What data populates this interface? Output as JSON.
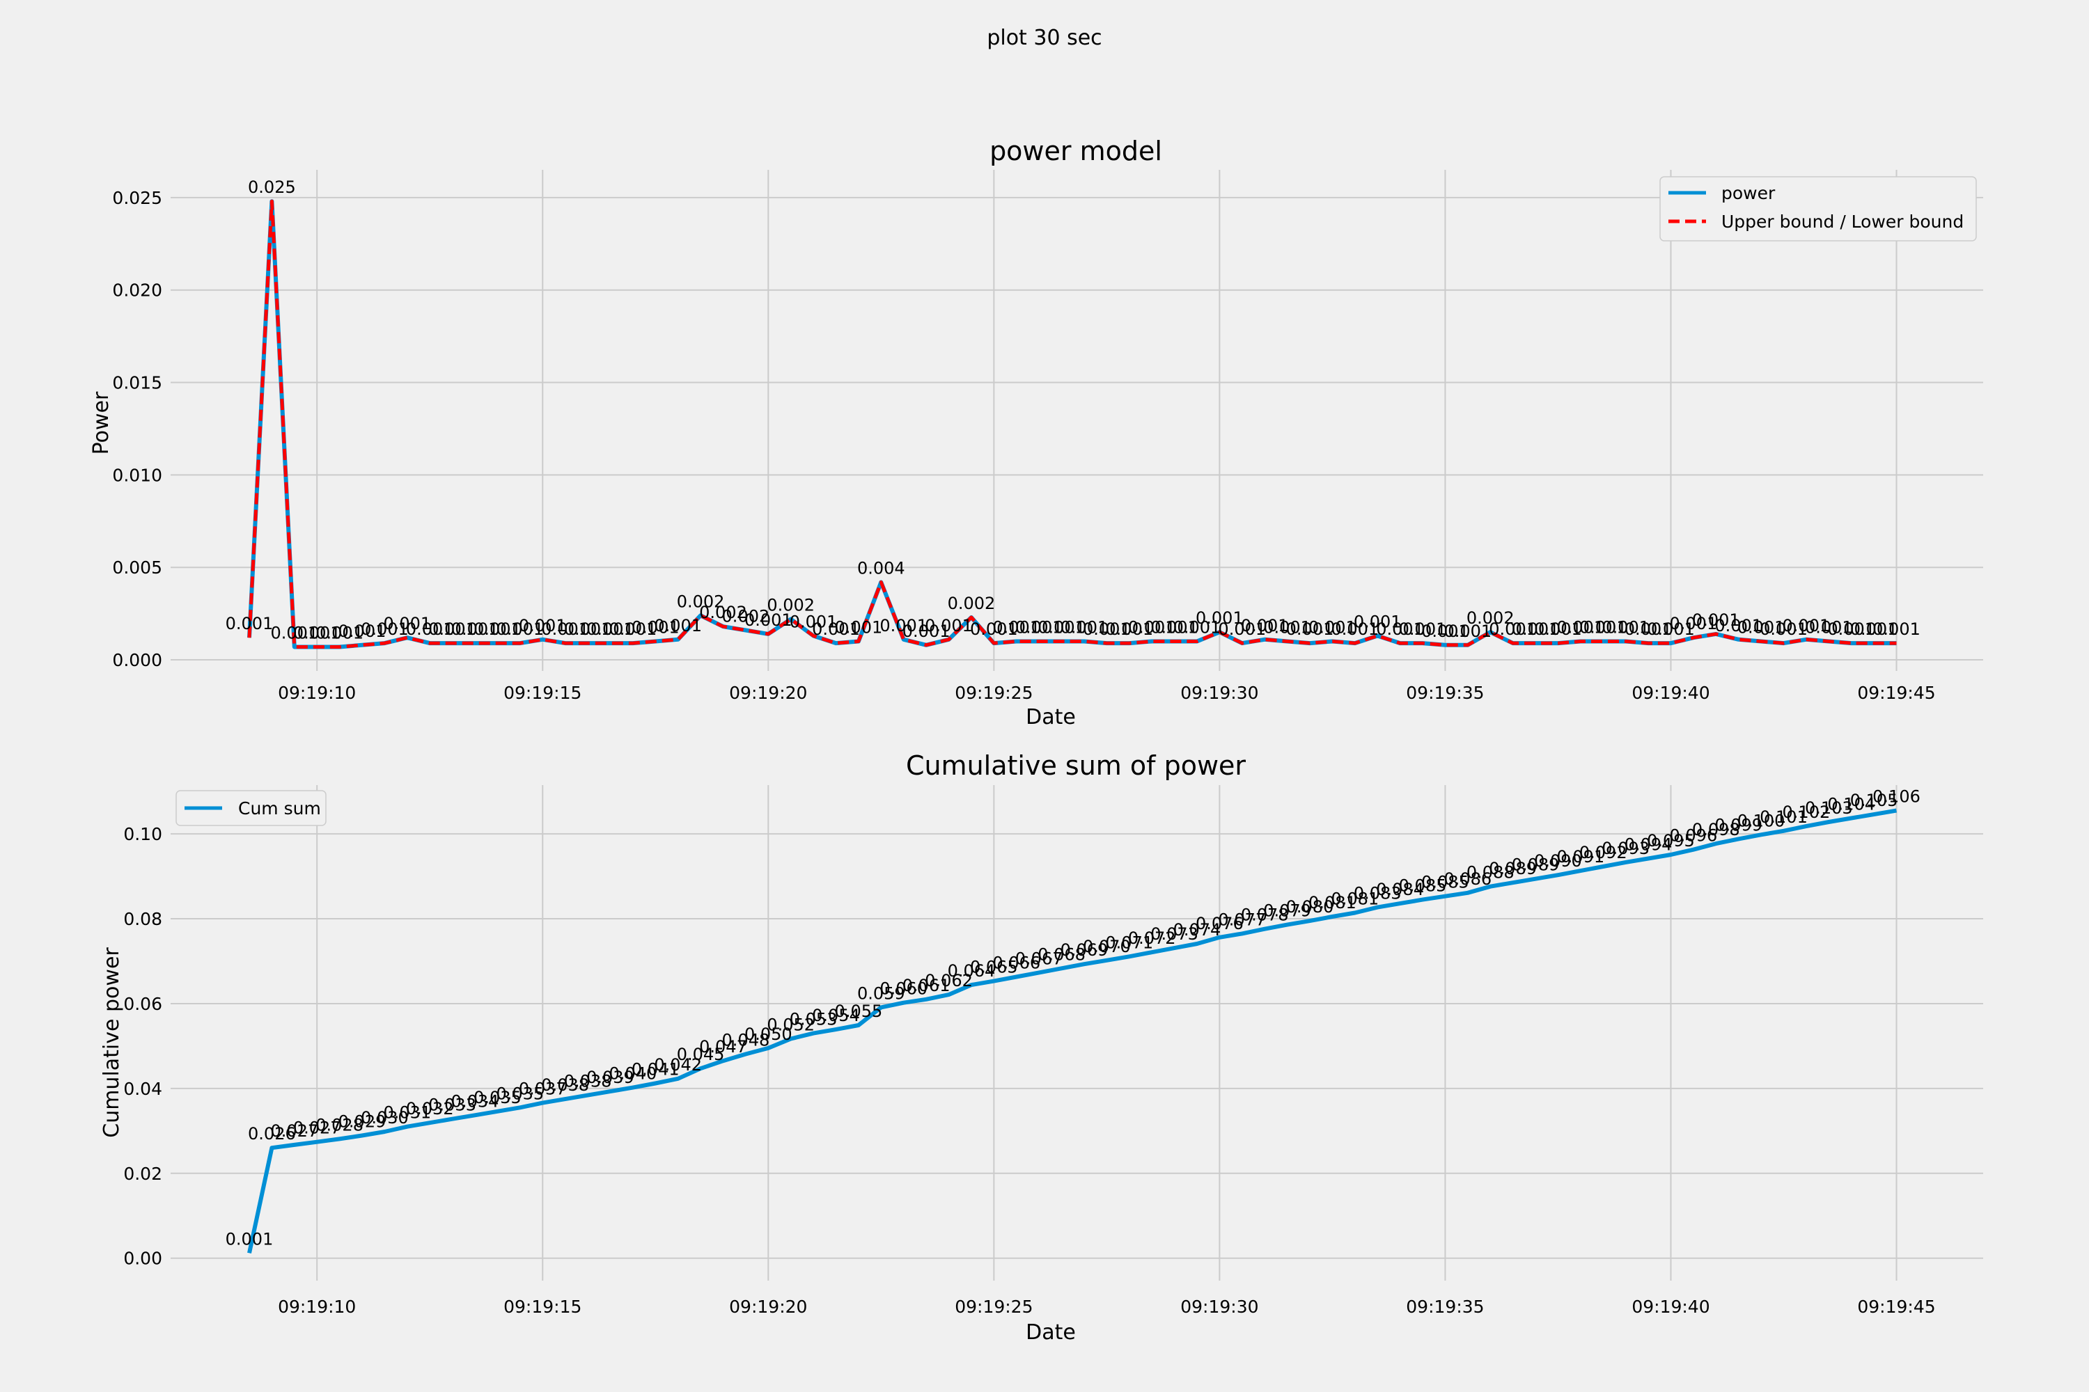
{
  "figure": {
    "suptitle": "plot 30 sec"
  },
  "colors": {
    "background": "#f0f0f0",
    "power": "#008fd5",
    "bound": "#ff0000",
    "grid": "#cbcbcb"
  },
  "chart_data": [
    {
      "type": "line",
      "title": "power model",
      "xlabel": "Date",
      "ylabel": "Power",
      "x_time_range": [
        "09:19:08.5",
        "09:19:45.1"
      ],
      "x_ticks": [
        "09:19:10",
        "09:19:15",
        "09:19:20",
        "09:19:25",
        "09:19:30",
        "09:19:35",
        "09:19:40",
        "09:19:45"
      ],
      "ylim": [
        -0.0006,
        0.0265
      ],
      "y_ticks": [
        "0.000",
        "0.005",
        "0.010",
        "0.015",
        "0.020",
        "0.025"
      ],
      "grid": true,
      "legend": "top-right",
      "series": [
        {
          "name": "power",
          "style": "solid"
        },
        {
          "name": "Upper bound / Lower bound",
          "style": "dashed"
        }
      ],
      "x": [
        "09:19:08.5",
        "09:19:09.0",
        "09:19:09.5",
        "09:19:10.0",
        "09:19:10.5",
        "09:19:11.0",
        "09:19:11.5",
        "09:19:12.0",
        "09:19:12.5",
        "09:19:13.0",
        "09:19:13.5",
        "09:19:14.0",
        "09:19:14.5",
        "09:19:15.0",
        "09:19:15.5",
        "09:19:16.0",
        "09:19:16.5",
        "09:19:17.0",
        "09:19:17.5",
        "09:19:18.0",
        "09:19:18.5",
        "09:19:19.0",
        "09:19:19.5",
        "09:19:20.0",
        "09:19:20.5",
        "09:19:21.0",
        "09:19:21.5",
        "09:19:22.0",
        "09:19:22.5",
        "09:19:23.0",
        "09:19:23.5",
        "09:19:24.0",
        "09:19:24.5",
        "09:19:25.0",
        "09:19:25.5",
        "09:19:26.0",
        "09:19:26.5",
        "09:19:27.0",
        "09:19:27.5",
        "09:19:28.0",
        "09:19:28.5",
        "09:19:29.0",
        "09:19:29.5",
        "09:19:30.0",
        "09:19:30.5",
        "09:19:31.0",
        "09:19:31.5",
        "09:19:32.0",
        "09:19:32.5",
        "09:19:33.0",
        "09:19:33.5",
        "09:19:34.0",
        "09:19:34.5",
        "09:19:35.0",
        "09:19:35.5",
        "09:19:36.0",
        "09:19:36.5",
        "09:19:37.0",
        "09:19:37.5",
        "09:19:38.0",
        "09:19:38.5",
        "09:19:39.0",
        "09:19:39.5",
        "09:19:40.0",
        "09:19:40.5",
        "09:19:41.0",
        "09:19:41.5",
        "09:19:42.0",
        "09:19:42.5",
        "09:19:43.0",
        "09:19:43.5",
        "09:19:44.0",
        "09:19:44.5",
        "09:19:45.0"
      ],
      "values": [
        0.0012,
        0.0248,
        0.0007,
        0.0007,
        0.0007,
        0.0008,
        0.0009,
        0.0012,
        0.0009,
        0.0009,
        0.0009,
        0.0009,
        0.0009,
        0.0011,
        0.0009,
        0.0009,
        0.0009,
        0.0009,
        0.001,
        0.0011,
        0.0024,
        0.0018,
        0.0016,
        0.0014,
        0.0022,
        0.0013,
        0.0009,
        0.001,
        0.0042,
        0.0011,
        0.0008,
        0.0011,
        0.0023,
        0.0009,
        0.001,
        0.001,
        0.001,
        0.001,
        0.0009,
        0.0009,
        0.001,
        0.001,
        0.001,
        0.0015,
        0.0009,
        0.0011,
        0.001,
        0.0009,
        0.001,
        0.0009,
        0.0013,
        0.0009,
        0.0009,
        0.0008,
        0.0008,
        0.0015,
        0.0009,
        0.0009,
        0.0009,
        0.001,
        0.001,
        0.001,
        0.0009,
        0.0009,
        0.0012,
        0.0014,
        0.0011,
        0.001,
        0.0009,
        0.0011,
        0.001,
        0.0009,
        0.0009,
        0.0009
      ],
      "labels": [
        "0.001",
        "0.025",
        "0.001",
        "0.001",
        "0.001",
        "0.001",
        "0.001",
        "0.001",
        "0.001",
        "0.001",
        "0.001",
        "0.001",
        "0.001",
        "0.001",
        "0.001",
        "0.001",
        "0.001",
        "0.001",
        "0.001",
        "0.001",
        "0.002",
        "0.002",
        "0.002",
        "0.001",
        "0.002",
        "0.001",
        "0.001",
        "0.001",
        "0.004",
        "0.001",
        "0.001",
        "0.001",
        "0.002",
        "0.001",
        "0.001",
        "0.001",
        "0.001",
        "0.001",
        "0.001",
        "0.001",
        "0.001",
        "0.001",
        "0.001",
        "0.001",
        "0.001",
        "0.001",
        "0.001",
        "0.001",
        "0.001",
        "0.001",
        "0.001",
        "0.001",
        "0.001",
        "0.001",
        "0.001",
        "0.002",
        "0.001",
        "0.001",
        "0.001",
        "0.001",
        "0.001",
        "0.001",
        "0.001",
        "0.001",
        "0.001",
        "0.001",
        "0.001",
        "0.001",
        "0.001",
        "0.001",
        "0.001",
        "0.001",
        "0.001",
        "0.001"
      ]
    },
    {
      "type": "line",
      "title": "Cumulative sum of power",
      "xlabel": "Date",
      "ylabel": "Cumulative power",
      "x_time_range": [
        "09:19:08.5",
        "09:19:45.1"
      ],
      "x_ticks": [
        "09:19:10",
        "09:19:15",
        "09:19:20",
        "09:19:25",
        "09:19:30",
        "09:19:35",
        "09:19:40",
        "09:19:45"
      ],
      "ylim": [
        -0.0053,
        0.1115
      ],
      "y_ticks": [
        "0.00",
        "0.02",
        "0.04",
        "0.06",
        "0.08",
        "0.10"
      ],
      "grid": true,
      "legend": "top-left",
      "series": [
        {
          "name": "Cum sum",
          "style": "solid"
        }
      ],
      "x": [
        "09:19:08.5",
        "09:19:09.0",
        "09:19:09.5",
        "09:19:10.0",
        "09:19:10.5",
        "09:19:11.0",
        "09:19:11.5",
        "09:19:12.0",
        "09:19:12.5",
        "09:19:13.0",
        "09:19:13.5",
        "09:19:14.0",
        "09:19:14.5",
        "09:19:15.0",
        "09:19:15.5",
        "09:19:16.0",
        "09:19:16.5",
        "09:19:17.0",
        "09:19:17.5",
        "09:19:18.0",
        "09:19:18.5",
        "09:19:19.0",
        "09:19:19.5",
        "09:19:20.0",
        "09:19:20.5",
        "09:19:21.0",
        "09:19:21.5",
        "09:19:22.0",
        "09:19:22.5",
        "09:19:23.0",
        "09:19:23.5",
        "09:19:24.0",
        "09:19:24.5",
        "09:19:25.0",
        "09:19:25.5",
        "09:19:26.0",
        "09:19:26.5",
        "09:19:27.0",
        "09:19:27.5",
        "09:19:28.0",
        "09:19:28.5",
        "09:19:29.0",
        "09:19:29.5",
        "09:19:30.0",
        "09:19:30.5",
        "09:19:31.0",
        "09:19:31.5",
        "09:19:32.0",
        "09:19:32.5",
        "09:19:33.0",
        "09:19:33.5",
        "09:19:34.0",
        "09:19:34.5",
        "09:19:35.0",
        "09:19:35.5",
        "09:19:36.0",
        "09:19:36.5",
        "09:19:37.0",
        "09:19:37.5",
        "09:19:38.0",
        "09:19:38.5",
        "09:19:39.0",
        "09:19:39.5",
        "09:19:40.0",
        "09:19:40.5",
        "09:19:41.0",
        "09:19:41.5",
        "09:19:42.0",
        "09:19:42.5",
        "09:19:43.0",
        "09:19:43.5",
        "09:19:44.0",
        "09:19:44.5",
        "09:19:45.0"
      ],
      "values": [
        0.0012,
        0.026,
        0.0267,
        0.0274,
        0.0281,
        0.0289,
        0.0298,
        0.031,
        0.0319,
        0.0328,
        0.0337,
        0.0346,
        0.0355,
        0.0366,
        0.0375,
        0.0384,
        0.0393,
        0.0402,
        0.0412,
        0.0423,
        0.0447,
        0.0465,
        0.0481,
        0.0495,
        0.0517,
        0.053,
        0.0539,
        0.0549,
        0.0591,
        0.0602,
        0.061,
        0.0621,
        0.0644,
        0.0653,
        0.0663,
        0.0673,
        0.0683,
        0.0693,
        0.0702,
        0.0711,
        0.0721,
        0.0731,
        0.0741,
        0.0756,
        0.0765,
        0.0776,
        0.0786,
        0.0795,
        0.0805,
        0.0814,
        0.0827,
        0.0836,
        0.0845,
        0.0853,
        0.0861,
        0.0876,
        0.0885,
        0.0894,
        0.0903,
        0.0913,
        0.0923,
        0.0933,
        0.0942,
        0.0951,
        0.0963,
        0.0977,
        0.0988,
        0.0998,
        0.1007,
        0.1018,
        0.1028,
        0.1037,
        0.1046,
        0.1055
      ],
      "labels": [
        "0.001",
        "0.026",
        "0.027",
        "0.027",
        "0.028",
        "0.029",
        "0.030",
        "0.031",
        "0.032",
        "0.033",
        "0.034",
        "0.035",
        "0.035",
        "0.037",
        "0.038",
        "0.038",
        "0.039",
        "0.040",
        "0.041",
        "0.042",
        "0.045",
        "0.047",
        "0.048",
        "0.050",
        "0.052",
        "0.053",
        "0.054",
        "0.055",
        "0.059",
        "0.060",
        "0.061",
        "0.062",
        "0.064",
        "0.065",
        "0.066",
        "0.067",
        "0.068",
        "0.069",
        "0.070",
        "0.071",
        "0.072",
        "0.073",
        "0.074",
        "0.076",
        "0.077",
        "0.078",
        "0.079",
        "0.080",
        "0.081",
        "0.081",
        "0.083",
        "0.084",
        "0.085",
        "0.085",
        "0.086",
        "0.088",
        "0.089",
        "0.089",
        "0.090",
        "0.091",
        "0.092",
        "0.093",
        "0.094",
        "0.095",
        "0.096",
        "0.098",
        "0.099",
        "0.100",
        "0.101",
        "0.102",
        "0.103",
        "0.104",
        "0.105",
        "0.106"
      ]
    }
  ]
}
